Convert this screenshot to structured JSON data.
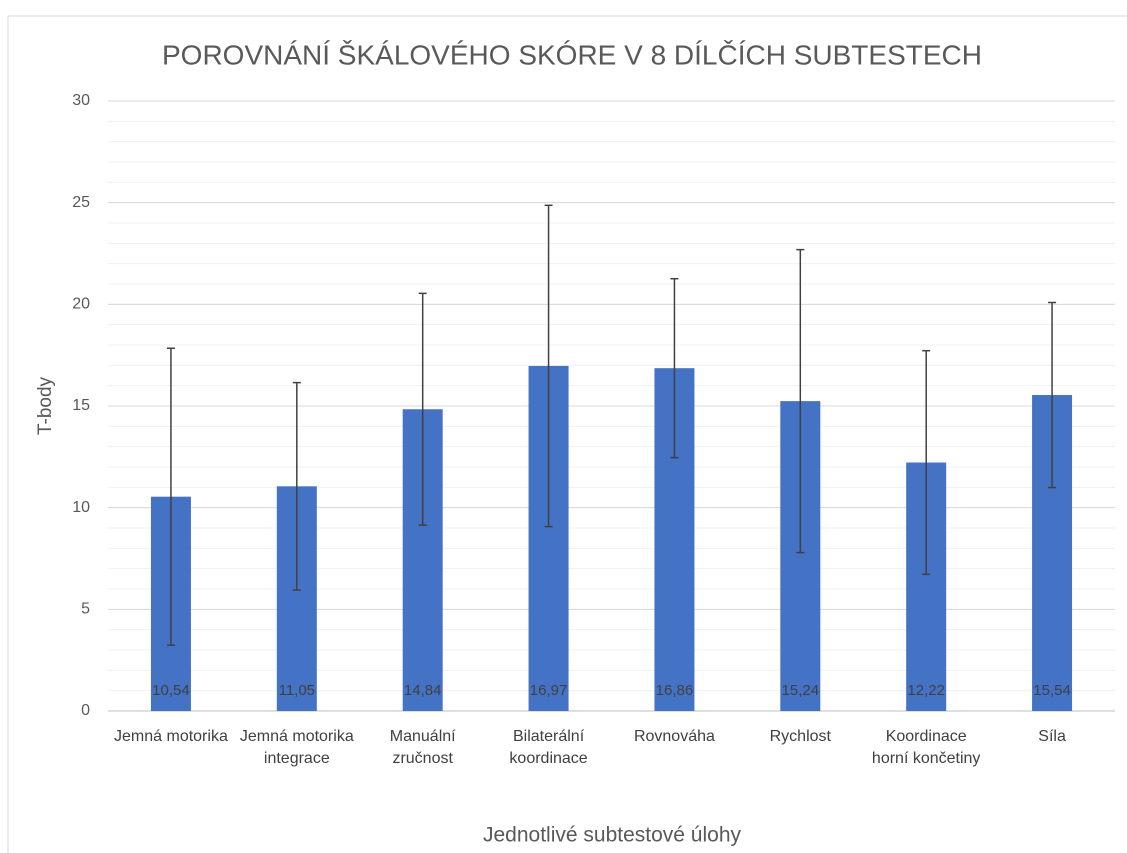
{
  "chart_data": {
    "type": "bar",
    "title": "POROVNÁNÍ ŠKÁLOVÉHO SKÓRE V 8 DÍLČÍCH SUBTESTECH",
    "x_label": "Jednotlivé subtestové úlohy",
    "y_label": "T-body",
    "categories": [
      "Jemná motorika",
      "Jemná motorika integrace",
      "Manuální zručnost",
      "Bilaterální koordinace",
      "Rovnováha",
      "Rychlost",
      "Koordinace horní končetiny",
      "Síla"
    ],
    "values": [
      10.54,
      11.05,
      14.84,
      16.97,
      16.86,
      15.24,
      12.22,
      15.54
    ],
    "value_labels": [
      "10,54",
      "11,05",
      "14,84",
      "16,97",
      "16,86",
      "15,24",
      "12,22",
      "15,54"
    ],
    "errors": [
      7.3,
      5.1,
      5.7,
      7.9,
      4.4,
      7.45,
      5.5,
      4.55
    ],
    "color": "#4472c4",
    "error_color": "#404040",
    "ylim": [
      0,
      30
    ],
    "yticks": [
      0,
      5,
      10,
      15,
      20,
      25,
      30
    ],
    "grid": true,
    "minor_grid_step": 1
  }
}
